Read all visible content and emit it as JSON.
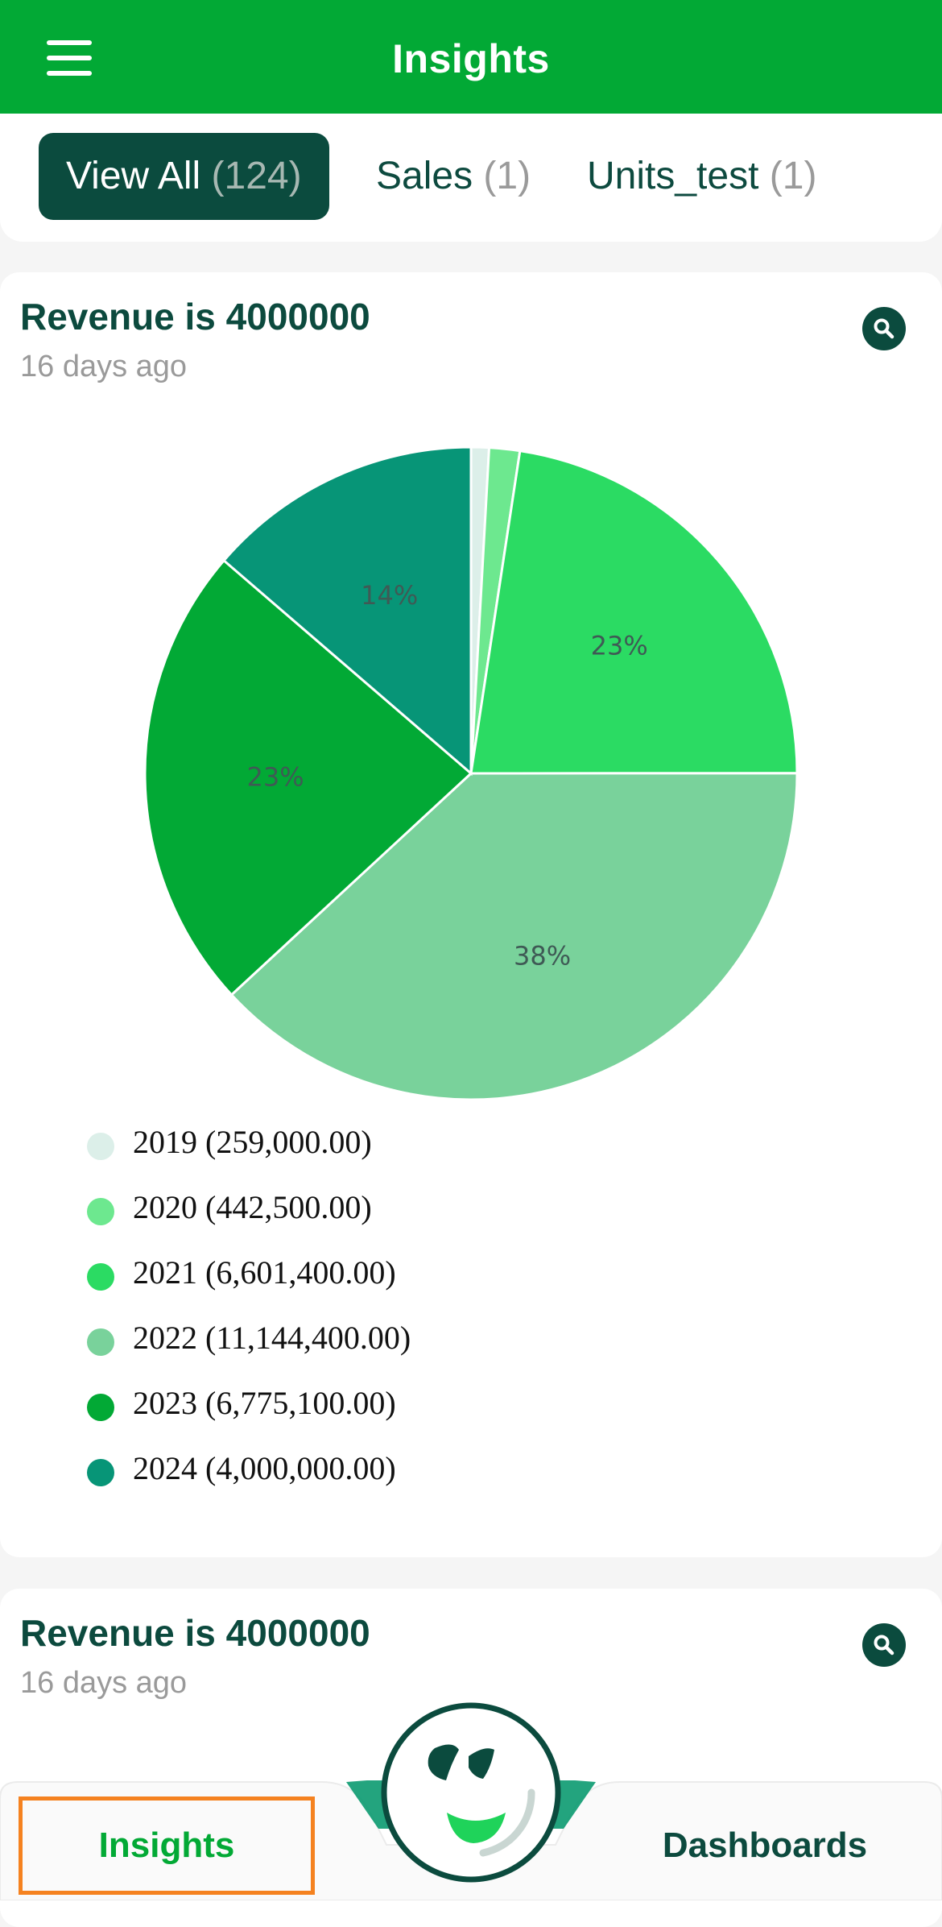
{
  "header": {
    "title": "Insights",
    "menu_icon": "hamburger-menu-icon"
  },
  "tabs": [
    {
      "label": "View All",
      "count": "(124)",
      "active": true
    },
    {
      "label": "Sales",
      "count": "(1)",
      "active": false
    },
    {
      "label": "Units_test",
      "count": "(1)",
      "active": false
    }
  ],
  "cards": [
    {
      "title": "Revenue is 4000000",
      "time": "16 days ago",
      "action_icon": "search-icon"
    },
    {
      "title": "Revenue is 4000000",
      "time": "16 days ago",
      "action_icon": "search-icon"
    }
  ],
  "chart_data": {
    "type": "pie",
    "title": "Revenue is 4000000",
    "categories": [
      "2019",
      "2020",
      "2021",
      "2022",
      "2023",
      "2024"
    ],
    "values": [
      259000,
      442500,
      6601400,
      11144400,
      6775100,
      4000000
    ],
    "legend_labels": [
      "2019 (259,000.00)",
      "2020 (442,500.00)",
      "2021 (6,601,400.00)",
      "2022 (11,144,400.00)",
      "2023 (6,775,100.00)",
      "2024 (4,000,000.00)"
    ],
    "slice_labels": [
      "",
      "",
      "23%",
      "38%",
      "23%",
      "14%"
    ],
    "colors": [
      "#dcefe9",
      "#6de88f",
      "#2bdb63",
      "#79d29b",
      "#02a935",
      "#079577"
    ],
    "legend_position": "bottom-left"
  },
  "bottom_nav": {
    "insights_label": "Insights",
    "dashboards_label": "Dashboards",
    "center_icon": "smiley-logo-icon"
  },
  "colors": {
    "brand": "#02a935",
    "dark": "#0b4b3e",
    "highlight": "#f58220"
  }
}
